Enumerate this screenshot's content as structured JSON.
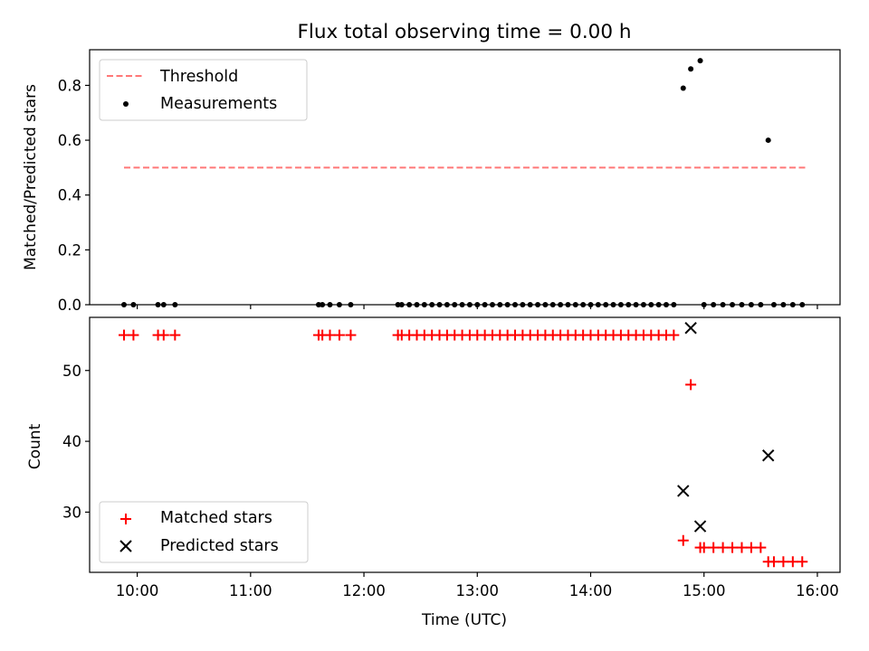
{
  "chart_data": {
    "type": "scatter",
    "title": "Flux total observing time = 0.00 h",
    "xlabel": "Time (UTC)",
    "x_ticks": [
      "10:00",
      "11:00",
      "12:00",
      "13:00",
      "14:00",
      "15:00",
      "16:00"
    ],
    "xlim_hours": [
      9.58,
      16.2
    ],
    "panels": [
      {
        "name": "ratio",
        "ylabel": "Matched/Predicted stars",
        "ylim": [
          0,
          0.93
        ],
        "y_ticks": [
          "0.0",
          "0.2",
          "0.4",
          "0.6",
          "0.8"
        ],
        "legend_position": "upper-left",
        "threshold": {
          "name": "Threshold",
          "value": 0.5,
          "x_range": [
            "09:53",
            "15:54"
          ],
          "color": "#ff7777",
          "style": "dashed"
        },
        "series": [
          {
            "name": "Measurements",
            "marker": "dot",
            "color": "#000000",
            "points": [
              [
                "09:53",
                0.0
              ],
              [
                "09:58",
                0.0
              ],
              [
                "10:11",
                0.0
              ],
              [
                "10:14",
                0.0
              ],
              [
                "10:20",
                0.0
              ],
              [
                "11:36",
                0.0
              ],
              [
                "11:38",
                0.0
              ],
              [
                "11:42",
                0.0
              ],
              [
                "11:47",
                0.0
              ],
              [
                "11:53",
                0.0
              ],
              [
                "12:18",
                0.0
              ],
              [
                "12:20",
                0.0
              ],
              [
                "12:24",
                0.0
              ],
              [
                "12:28",
                0.0
              ],
              [
                "12:32",
                0.0
              ],
              [
                "12:36",
                0.0
              ],
              [
                "12:40",
                0.0
              ],
              [
                "12:44",
                0.0
              ],
              [
                "12:48",
                0.0
              ],
              [
                "12:52",
                0.0
              ],
              [
                "12:56",
                0.0
              ],
              [
                "13:00",
                0.0
              ],
              [
                "13:04",
                0.0
              ],
              [
                "13:08",
                0.0
              ],
              [
                "13:12",
                0.0
              ],
              [
                "13:16",
                0.0
              ],
              [
                "13:20",
                0.0
              ],
              [
                "13:24",
                0.0
              ],
              [
                "13:28",
                0.0
              ],
              [
                "13:32",
                0.0
              ],
              [
                "13:36",
                0.0
              ],
              [
                "13:40",
                0.0
              ],
              [
                "13:44",
                0.0
              ],
              [
                "13:48",
                0.0
              ],
              [
                "13:52",
                0.0
              ],
              [
                "13:56",
                0.0
              ],
              [
                "14:00",
                0.0
              ],
              [
                "14:04",
                0.0
              ],
              [
                "14:08",
                0.0
              ],
              [
                "14:12",
                0.0
              ],
              [
                "14:16",
                0.0
              ],
              [
                "14:20",
                0.0
              ],
              [
                "14:24",
                0.0
              ],
              [
                "14:28",
                0.0
              ],
              [
                "14:32",
                0.0
              ],
              [
                "14:36",
                0.0
              ],
              [
                "14:40",
                0.0
              ],
              [
                "14:44",
                0.0
              ],
              [
                "14:49",
                0.79
              ],
              [
                "14:53",
                0.86
              ],
              [
                "14:58",
                0.89
              ],
              [
                "15:00",
                0.0
              ],
              [
                "15:05",
                0.0
              ],
              [
                "15:10",
                0.0
              ],
              [
                "15:15",
                0.0
              ],
              [
                "15:20",
                0.0
              ],
              [
                "15:25",
                0.0
              ],
              [
                "15:30",
                0.0
              ],
              [
                "15:34",
                0.6
              ],
              [
                "15:37",
                0.0
              ],
              [
                "15:42",
                0.0
              ],
              [
                "15:47",
                0.0
              ],
              [
                "15:52",
                0.0
              ]
            ]
          }
        ]
      },
      {
        "name": "count",
        "ylabel": "Count",
        "ylim": [
          21.5,
          57.5
        ],
        "y_ticks": [
          "30",
          "40",
          "50"
        ],
        "legend_position": "lower-left",
        "series": [
          {
            "name": "Matched stars",
            "marker": "plus",
            "color": "#ff0000",
            "points": [
              [
                "09:53",
                55
              ],
              [
                "09:58",
                55
              ],
              [
                "10:11",
                55
              ],
              [
                "10:14",
                55
              ],
              [
                "10:20",
                55
              ],
              [
                "11:36",
                55
              ],
              [
                "11:38",
                55
              ],
              [
                "11:42",
                55
              ],
              [
                "11:47",
                55
              ],
              [
                "11:53",
                55
              ],
              [
                "12:18",
                55
              ],
              [
                "12:20",
                55
              ],
              [
                "12:24",
                55
              ],
              [
                "12:28",
                55
              ],
              [
                "12:32",
                55
              ],
              [
                "12:36",
                55
              ],
              [
                "12:40",
                55
              ],
              [
                "12:44",
                55
              ],
              [
                "12:48",
                55
              ],
              [
                "12:52",
                55
              ],
              [
                "12:56",
                55
              ],
              [
                "13:00",
                55
              ],
              [
                "13:04",
                55
              ],
              [
                "13:08",
                55
              ],
              [
                "13:12",
                55
              ],
              [
                "13:16",
                55
              ],
              [
                "13:20",
                55
              ],
              [
                "13:24",
                55
              ],
              [
                "13:28",
                55
              ],
              [
                "13:32",
                55
              ],
              [
                "13:36",
                55
              ],
              [
                "13:40",
                55
              ],
              [
                "13:44",
                55
              ],
              [
                "13:48",
                55
              ],
              [
                "13:52",
                55
              ],
              [
                "13:56",
                55
              ],
              [
                "14:00",
                55
              ],
              [
                "14:04",
                55
              ],
              [
                "14:08",
                55
              ],
              [
                "14:12",
                55
              ],
              [
                "14:16",
                55
              ],
              [
                "14:20",
                55
              ],
              [
                "14:24",
                55
              ],
              [
                "14:28",
                55
              ],
              [
                "14:32",
                55
              ],
              [
                "14:36",
                55
              ],
              [
                "14:40",
                55
              ],
              [
                "14:44",
                55
              ],
              [
                "14:49",
                26
              ],
              [
                "14:53",
                48
              ],
              [
                "14:58",
                25
              ],
              [
                "15:00",
                25
              ],
              [
                "15:05",
                25
              ],
              [
                "15:10",
                25
              ],
              [
                "15:15",
                25
              ],
              [
                "15:20",
                25
              ],
              [
                "15:25",
                25
              ],
              [
                "15:30",
                25
              ],
              [
                "15:34",
                23
              ],
              [
                "15:37",
                23
              ],
              [
                "15:42",
                23
              ],
              [
                "15:47",
                23
              ],
              [
                "15:52",
                23
              ]
            ]
          },
          {
            "name": "Predicted stars",
            "marker": "x",
            "color": "#000000",
            "points": [
              [
                "14:49",
                33
              ],
              [
                "14:53",
                56
              ],
              [
                "14:58",
                28
              ],
              [
                "15:34",
                38
              ]
            ]
          }
        ]
      }
    ]
  }
}
